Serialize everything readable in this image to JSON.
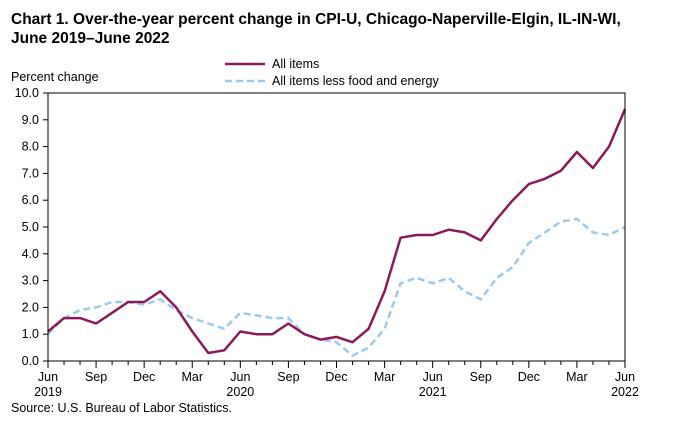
{
  "chart_title_line1": "Chart 1. Over-the-year percent change in CPI-U, Chicago-Naperville-Elgin,  IL-IN-WI,",
  "chart_title_line2": "June 2019–June 2022",
  "source": "Source: U.S. Bureau of Labor Statistics.",
  "chart_data": {
    "type": "line",
    "title": "Chart 1. Over-the-year percent change in CPI-U, Chicago-Naperville-Elgin,  IL-IN-WI, June 2019–June 2022",
    "ylabel": "Percent change",
    "xlabel": "",
    "ylim": [
      0.0,
      10.0
    ],
    "y_ticks": [
      "0.0",
      "1.0",
      "2.0",
      "3.0",
      "4.0",
      "5.0",
      "6.0",
      "7.0",
      "8.0",
      "9.0",
      "10.0"
    ],
    "x_tick_labels": [
      {
        "index": 0,
        "month": "Jun",
        "year": "2019"
      },
      {
        "index": 3,
        "month": "Sep",
        "year": ""
      },
      {
        "index": 6,
        "month": "Dec",
        "year": ""
      },
      {
        "index": 9,
        "month": "Mar",
        "year": ""
      },
      {
        "index": 12,
        "month": "Jun",
        "year": "2020"
      },
      {
        "index": 15,
        "month": "Sep",
        "year": ""
      },
      {
        "index": 18,
        "month": "Dec",
        "year": ""
      },
      {
        "index": 21,
        "month": "Mar",
        "year": ""
      },
      {
        "index": 24,
        "month": "Jun",
        "year": "2021"
      },
      {
        "index": 27,
        "month": "Sep",
        "year": ""
      },
      {
        "index": 30,
        "month": "Dec",
        "year": ""
      },
      {
        "index": 33,
        "month": "Mar",
        "year": ""
      },
      {
        "index": 36,
        "month": "Jun",
        "year": "2022"
      }
    ],
    "x": [
      "Jun 2019",
      "Jul 2019",
      "Aug 2019",
      "Sep 2019",
      "Oct 2019",
      "Nov 2019",
      "Dec 2019",
      "Jan 2020",
      "Feb 2020",
      "Mar 2020",
      "Apr 2020",
      "May 2020",
      "Jun 2020",
      "Jul 2020",
      "Aug 2020",
      "Sep 2020",
      "Oct 2020",
      "Nov 2020",
      "Dec 2020",
      "Jan 2021",
      "Feb 2021",
      "Mar 2021",
      "Apr 2021",
      "May 2021",
      "Jun 2021",
      "Jul 2021",
      "Aug 2021",
      "Sep 2021",
      "Oct 2021",
      "Nov 2021",
      "Dec 2021",
      "Jan 2022",
      "Feb 2022",
      "Mar 2022",
      "Apr 2022",
      "May 2022",
      "Jun 2022"
    ],
    "series": [
      {
        "name": "All items",
        "color": "#8b1a5a",
        "style": "solid",
        "values": [
          1.1,
          1.6,
          1.6,
          1.4,
          1.8,
          2.2,
          2.2,
          2.6,
          2.0,
          1.1,
          0.3,
          0.4,
          1.1,
          1.0,
          1.0,
          1.4,
          1.0,
          0.8,
          0.9,
          0.7,
          1.2,
          2.6,
          4.6,
          4.7,
          4.7,
          4.9,
          4.8,
          4.5,
          5.3,
          6.0,
          6.6,
          6.8,
          7.1,
          7.8,
          7.2,
          8.0,
          9.4
        ]
      },
      {
        "name": "All items less food and energy",
        "color": "#9dc9ec",
        "style": "dashed",
        "values": [
          1.0,
          1.6,
          1.9,
          2.0,
          2.2,
          2.2,
          2.1,
          2.3,
          1.9,
          1.6,
          1.4,
          1.2,
          1.8,
          1.7,
          1.6,
          1.6,
          1.0,
          0.8,
          0.7,
          0.2,
          0.5,
          1.2,
          2.9,
          3.1,
          2.9,
          3.1,
          2.6,
          2.3,
          3.1,
          3.5,
          4.4,
          4.8,
          5.2,
          5.3,
          4.8,
          4.7,
          5.0
        ]
      }
    ],
    "legend_position": "top-center",
    "grid": false
  }
}
